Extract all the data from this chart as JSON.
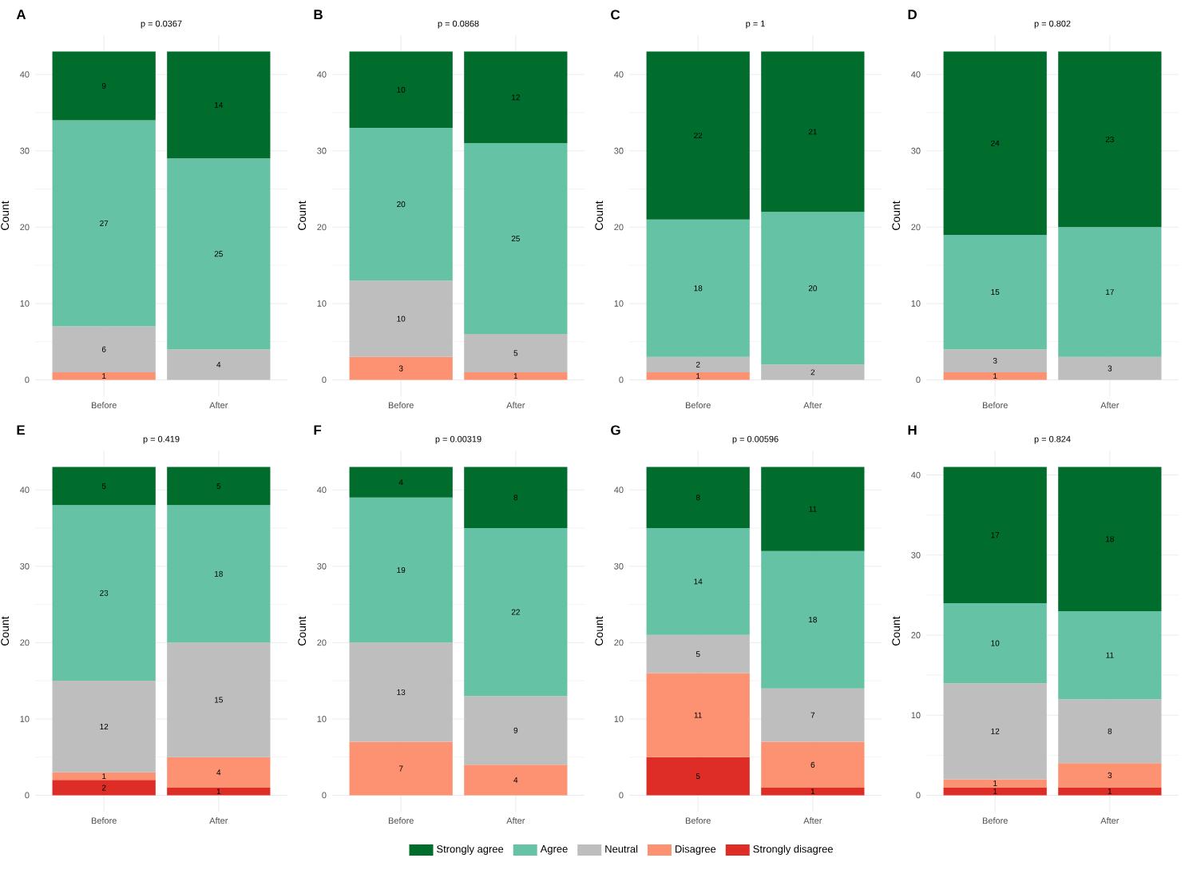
{
  "chart_data": [
    {
      "type": "bar",
      "stacked": true,
      "title": "A",
      "subtitle": "p = 0.0367",
      "ylabel": "Count",
      "categories": [
        "Before",
        "After"
      ],
      "ylim": [
        -2.15,
        45.15
      ],
      "yticks": [
        0,
        10,
        20,
        30,
        40
      ],
      "grid": true,
      "data_labels": true,
      "series": [
        {
          "color": "#de2d26",
          "values": [
            null,
            null
          ]
        },
        {
          "color": "#fc9272",
          "values": [
            1,
            null
          ]
        },
        {
          "color": "#bebebe",
          "values": [
            6,
            4
          ]
        },
        {
          "color": "#66c2a5",
          "values": [
            27,
            25
          ]
        },
        {
          "color": "#006d2c",
          "values": [
            9,
            14
          ]
        }
      ]
    },
    {
      "type": "bar",
      "stacked": true,
      "title": "B",
      "subtitle": "p = 0.0868",
      "ylabel": "Count",
      "categories": [
        "Before",
        "After"
      ],
      "ylim": [
        -2.15,
        45.15
      ],
      "yticks": [
        0,
        10,
        20,
        30,
        40
      ],
      "grid": true,
      "data_labels": true,
      "series": [
        {
          "color": "#de2d26",
          "values": [
            null,
            null
          ]
        },
        {
          "color": "#fc9272",
          "values": [
            3,
            1
          ]
        },
        {
          "color": "#bebebe",
          "values": [
            10,
            5
          ]
        },
        {
          "color": "#66c2a5",
          "values": [
            20,
            25
          ]
        },
        {
          "color": "#006d2c",
          "values": [
            10,
            12
          ]
        }
      ]
    },
    {
      "type": "bar",
      "stacked": true,
      "title": "C",
      "subtitle": "p = 1",
      "ylabel": "Count",
      "categories": [
        "Before",
        "After"
      ],
      "ylim": [
        -2.15,
        45.15
      ],
      "yticks": [
        0,
        10,
        20,
        30,
        40
      ],
      "grid": true,
      "data_labels": true,
      "series": [
        {
          "color": "#de2d26",
          "values": [
            null,
            null
          ]
        },
        {
          "color": "#fc9272",
          "values": [
            1,
            null
          ]
        },
        {
          "color": "#bebebe",
          "values": [
            2,
            2
          ]
        },
        {
          "color": "#66c2a5",
          "values": [
            18,
            20
          ]
        },
        {
          "color": "#006d2c",
          "values": [
            22,
            21
          ]
        }
      ]
    },
    {
      "type": "bar",
      "stacked": true,
      "title": "D",
      "subtitle": "p = 0.802",
      "ylabel": "Count",
      "categories": [
        "Before",
        "After"
      ],
      "ylim": [
        -2.15,
        45.15
      ],
      "yticks": [
        0,
        10,
        20,
        30,
        40
      ],
      "grid": true,
      "data_labels": true,
      "series": [
        {
          "color": "#de2d26",
          "values": [
            null,
            null
          ]
        },
        {
          "color": "#fc9272",
          "values": [
            1,
            null
          ]
        },
        {
          "color": "#bebebe",
          "values": [
            3,
            3
          ]
        },
        {
          "color": "#66c2a5",
          "values": [
            15,
            17
          ]
        },
        {
          "color": "#006d2c",
          "values": [
            24,
            23
          ]
        }
      ]
    },
    {
      "type": "bar",
      "stacked": true,
      "title": "E",
      "subtitle": "p = 0.419",
      "ylabel": "Count",
      "categories": [
        "Before",
        "After"
      ],
      "ylim": [
        -2.15,
        45.15
      ],
      "yticks": [
        0,
        10,
        20,
        30,
        40
      ],
      "grid": true,
      "data_labels": true,
      "series": [
        {
          "color": "#de2d26",
          "values": [
            2,
            1
          ]
        },
        {
          "color": "#fc9272",
          "values": [
            1,
            4
          ]
        },
        {
          "color": "#bebebe",
          "values": [
            12,
            15
          ]
        },
        {
          "color": "#66c2a5",
          "values": [
            23,
            18
          ]
        },
        {
          "color": "#006d2c",
          "values": [
            5,
            5
          ]
        }
      ]
    },
    {
      "type": "bar",
      "stacked": true,
      "title": "F",
      "subtitle": "p = 0.00319",
      "ylabel": "Count",
      "categories": [
        "Before",
        "After"
      ],
      "ylim": [
        -2.15,
        45.15
      ],
      "yticks": [
        0,
        10,
        20,
        30,
        40
      ],
      "grid": true,
      "data_labels": true,
      "series": [
        {
          "color": "#de2d26",
          "values": [
            null,
            null
          ]
        },
        {
          "color": "#fc9272",
          "values": [
            7,
            4
          ]
        },
        {
          "color": "#bebebe",
          "values": [
            13,
            9
          ]
        },
        {
          "color": "#66c2a5",
          "values": [
            19,
            22
          ]
        },
        {
          "color": "#006d2c",
          "values": [
            4,
            8
          ]
        }
      ]
    },
    {
      "type": "bar",
      "stacked": true,
      "title": "G",
      "subtitle": "p = 0.00596",
      "ylabel": "Count",
      "categories": [
        "Before",
        "After"
      ],
      "ylim": [
        -2.15,
        45.15
      ],
      "yticks": [
        0,
        10,
        20,
        30,
        40
      ],
      "grid": true,
      "data_labels": true,
      "series": [
        {
          "color": "#de2d26",
          "values": [
            5,
            1
          ]
        },
        {
          "color": "#fc9272",
          "values": [
            11,
            6
          ]
        },
        {
          "color": "#bebebe",
          "values": [
            5,
            7
          ]
        },
        {
          "color": "#66c2a5",
          "values": [
            14,
            18
          ]
        },
        {
          "color": "#006d2c",
          "values": [
            8,
            11
          ]
        }
      ]
    },
    {
      "type": "bar",
      "stacked": true,
      "title": "H",
      "subtitle": "p = 0.824",
      "ylabel": "Count",
      "categories": [
        "Before",
        "After"
      ],
      "ylim": [
        -2.05,
        43.05
      ],
      "yticks": [
        0,
        10,
        20,
        30,
        40
      ],
      "grid": true,
      "data_labels": true,
      "legend": "bottom",
      "series": [
        {
          "name": "Strongly disagree",
          "color": "#de2d26",
          "values": [
            1,
            1
          ]
        },
        {
          "name": "Disagree",
          "color": "#fc9272",
          "values": [
            1,
            3
          ]
        },
        {
          "name": "Neutral",
          "color": "#bebebe",
          "values": [
            12,
            8
          ]
        },
        {
          "name": "Agree",
          "color": "#66c2a5",
          "values": [
            10,
            11
          ]
        },
        {
          "name": "Strongly agree",
          "color": "#006d2c",
          "values": [
            17,
            18
          ]
        }
      ]
    }
  ]
}
